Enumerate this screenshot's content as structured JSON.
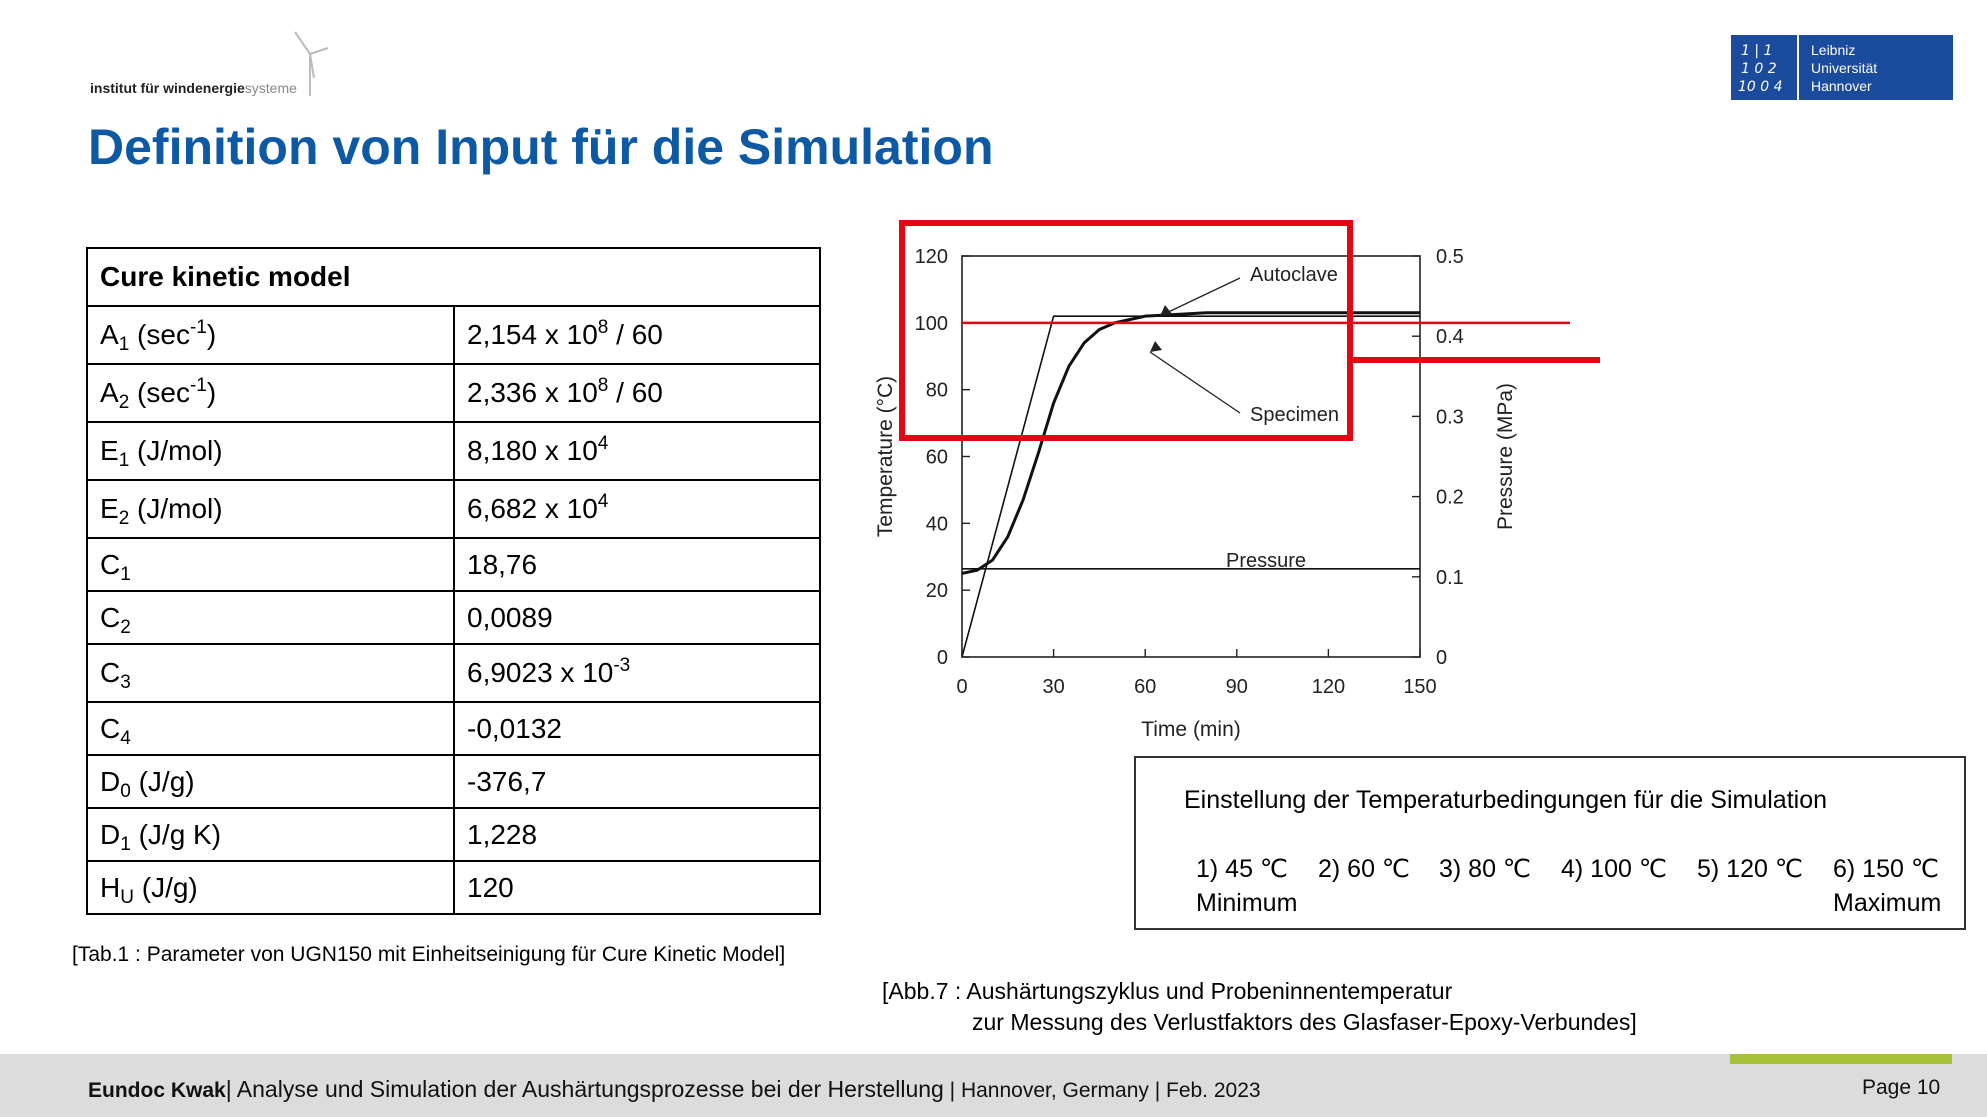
{
  "header": {
    "institute_bold": "institut für windenergie",
    "institute_light": "systeme",
    "university": [
      "Leibniz",
      "Universität",
      "Hannover"
    ],
    "title": "Definition von Input für die Simulation"
  },
  "table": {
    "header": "Cure kinetic model",
    "rows": [
      {
        "sym": "A",
        "sub": "1",
        "unit_pre": " (sec",
        "unit_sup": "-1",
        "unit_post": ")",
        "base": "2,154 x 10",
        "exp": "8",
        "tail": " / 60"
      },
      {
        "sym": "A",
        "sub": "2",
        "unit_pre": " (sec",
        "unit_sup": "-1",
        "unit_post": ")",
        "base": "2,336 x 10",
        "exp": "8",
        "tail": " / 60"
      },
      {
        "sym": "E",
        "sub": "1",
        "unit_pre": " (J/mol)",
        "unit_sup": "",
        "unit_post": "",
        "base": "8,180 x 10",
        "exp": "4",
        "tail": ""
      },
      {
        "sym": "E",
        "sub": "2",
        "unit_pre": " (J/mol)",
        "unit_sup": "",
        "unit_post": "",
        "base": "6,682 x 10",
        "exp": "4",
        "tail": ""
      },
      {
        "sym": "C",
        "sub": "1",
        "unit_pre": "",
        "unit_sup": "",
        "unit_post": "",
        "base": "18,76",
        "exp": "",
        "tail": ""
      },
      {
        "sym": "C",
        "sub": "2",
        "unit_pre": "",
        "unit_sup": "",
        "unit_post": "",
        "base": "0,0089",
        "exp": "",
        "tail": ""
      },
      {
        "sym": "C",
        "sub": "3",
        "unit_pre": "",
        "unit_sup": "",
        "unit_post": "",
        "base": "6,9023 x 10",
        "exp": "-3",
        "tail": ""
      },
      {
        "sym": "C",
        "sub": "4",
        "unit_pre": "",
        "unit_sup": "",
        "unit_post": "",
        "base": "-0,0132",
        "exp": "",
        "tail": ""
      },
      {
        "sym": "D",
        "sub": "0",
        "unit_pre": " (J/g)",
        "unit_sup": "",
        "unit_post": "",
        "base": "-376,7",
        "exp": "",
        "tail": ""
      },
      {
        "sym": "D",
        "sub": "1",
        "unit_pre": " (J/g K)",
        "unit_sup": "",
        "unit_post": "",
        "base": "1,228",
        "exp": "",
        "tail": ""
      },
      {
        "sym": "H",
        "sub": "U",
        "unit_pre": " (J/g)",
        "unit_sup": "",
        "unit_post": "",
        "base": "120",
        "exp": "",
        "tail": ""
      }
    ],
    "caption": "[Tab.1 : Parameter von UGN150 mit Einheitseinigung für Cure Kinetic Model]"
  },
  "chart_data": {
    "type": "line",
    "xlabel": "Time (min)",
    "ylabel": "Temperature (°C)",
    "y2label": "Pressure (MPa)",
    "xlim": [
      0,
      150
    ],
    "ylim": [
      0,
      120
    ],
    "y2lim": [
      0,
      0.5
    ],
    "xticks": [
      "0",
      "30",
      "60",
      "90",
      "120",
      "150"
    ],
    "yticks": [
      "0",
      "20",
      "40",
      "60",
      "80",
      "100",
      "120"
    ],
    "y2ticks": [
      "0",
      "0.1",
      "0.2",
      "0.3",
      "0.4",
      "0.5"
    ],
    "series": [
      {
        "name": "Autoclave",
        "x": [
          0,
          30,
          150
        ],
        "y": [
          0,
          102,
          102
        ]
      },
      {
        "name": "Specimen",
        "x": [
          0,
          5,
          10,
          15,
          20,
          25,
          30,
          35,
          40,
          45,
          50,
          55,
          60,
          70,
          80,
          90,
          120,
          150
        ],
        "y": [
          25,
          26,
          29,
          36,
          47,
          61,
          76,
          87,
          94,
          98,
          100,
          101,
          102,
          102.5,
          103,
          103,
          103,
          103
        ]
      },
      {
        "name": "Pressure",
        "x": [
          0,
          5,
          150
        ],
        "y2": [
          0.11,
          0.11,
          0.11
        ]
      }
    ],
    "reference_line_y": 100,
    "highlight_color": "#e30613"
  },
  "info": {
    "title": "Einstellung der Temperaturbedingungen für die Simulation",
    "options": [
      "1) 45 ℃",
      "2) 60 ℃",
      "3) 80 ℃",
      "4) 100 ℃",
      "5) 120 ℃",
      "6) 150 ℃"
    ],
    "min_label": "Minimum",
    "max_label": "Maximum"
  },
  "figure_caption": {
    "line1": "[Abb.7 : Aushärtungszyklus und Probeninnentemperatur",
    "line2": "zur Messung des Verlustfaktors des Glasfaser-Epoxy-Verbundes]"
  },
  "footer": {
    "author": "Eundoc Kwak",
    "course": "| Analyse und Simulation der Aushärtungsprozesse bei der Herstellung",
    "place_date": " | Hannover, Germany | Feb. 2023",
    "page": "Page 10"
  },
  "colors": {
    "title_blue": "#0e59a4",
    "luh_blue": "#1a4b9c",
    "accent_green": "#a7c13a",
    "highlight_red": "#e30613",
    "footer_gray": "#dcdcdc"
  }
}
